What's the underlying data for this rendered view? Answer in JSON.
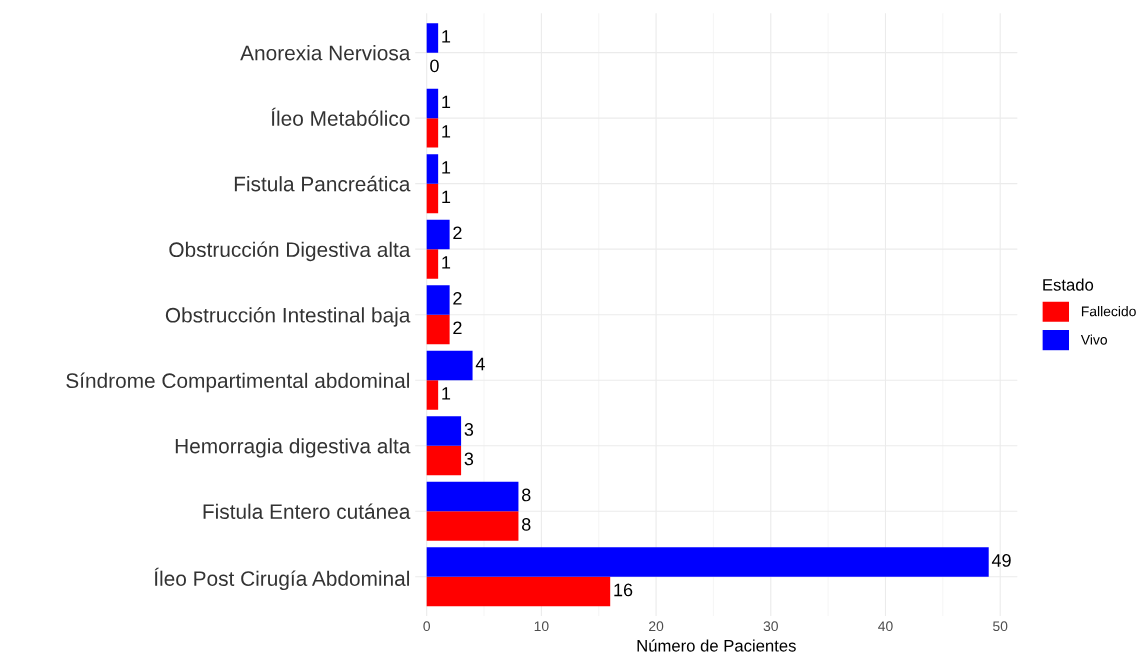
{
  "chart_data": {
    "type": "bar",
    "orientation": "horizontal",
    "xlabel": "Número de Pacientes",
    "legend_title": "Estado",
    "legend": "right",
    "categories": [
      "Anorexia Nerviosa",
      "Íleo Metabólico",
      "Fistula Pancreática",
      "Obstrucción Digestiva alta",
      "Obstrucción Intestinal baja",
      "Síndrome Compartimental abdominal",
      "Hemorragia digestiva alta",
      "Fistula Entero cutánea",
      "Íleo Post Cirugía Abdominal"
    ],
    "series": [
      {
        "name": "Fallecido",
        "color": "#ff0000",
        "values": [
          0,
          1,
          1,
          1,
          2,
          1,
          3,
          8,
          16
        ]
      },
      {
        "name": "Vivo",
        "color": "#0000ff",
        "values": [
          1,
          1,
          1,
          2,
          2,
          4,
          3,
          8,
          49
        ]
      }
    ],
    "xlim": [
      -1,
      51.5
    ],
    "xticks": [
      0,
      10,
      20,
      30,
      40,
      50
    ],
    "grid": true,
    "data_labels": true
  }
}
